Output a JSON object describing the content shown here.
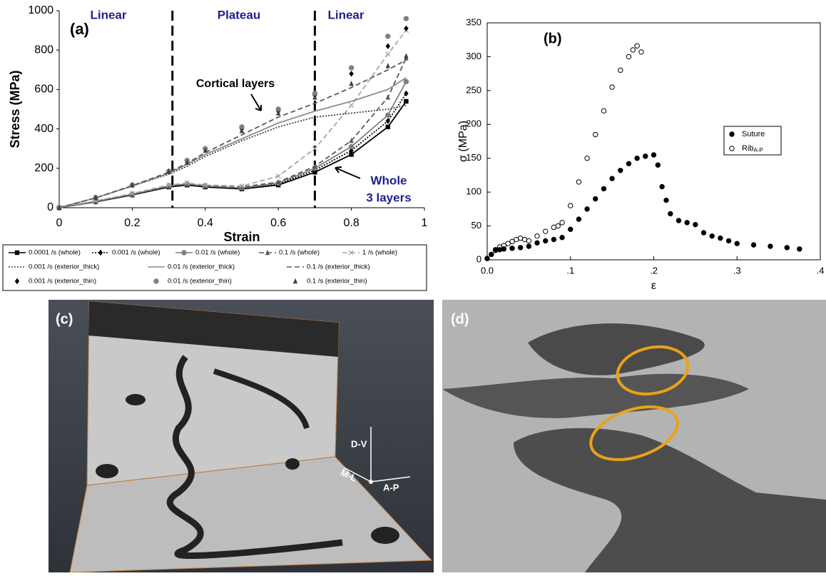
{
  "chart_data": [
    {
      "type": "line",
      "panel_label": "(a)",
      "x_label": "Strain",
      "y_label": "Stress (MPa)",
      "xlim": [
        0,
        1
      ],
      "xticks": [
        0,
        0.2,
        0.4,
        0.6,
        0.8,
        1
      ],
      "ylim": [
        0,
        1000
      ],
      "yticks": [
        0,
        200,
        400,
        600,
        800,
        1000
      ],
      "vlines": [
        0.31,
        0.7
      ],
      "annotations": [
        "Linear",
        "Plateau",
        "Linear",
        "Cortical layers",
        "Whole",
        "3 layers"
      ],
      "x": [
        0,
        0.1,
        0.2,
        0.3,
        0.35,
        0.4,
        0.5,
        0.6,
        0.7,
        0.8,
        0.9,
        0.95
      ],
      "series": [
        {
          "name": "0.0001 /s (whole)",
          "color": "#000000",
          "marker": "square",
          "dash": "solid",
          "values": [
            0,
            30,
            65,
            105,
            115,
            105,
            95,
            115,
            180,
            270,
            410,
            540
          ]
        },
        {
          "name": "0.001 /s (whole)",
          "color": "#000000",
          "marker": "diamond",
          "dash": "dot",
          "values": [
            0,
            30,
            65,
            108,
            118,
            108,
            98,
            120,
            190,
            290,
            440,
            580
          ]
        },
        {
          "name": "0.01 /s (whole)",
          "color": "#7f7f7f",
          "marker": "circle",
          "dash": "solid",
          "values": [
            0,
            32,
            68,
            110,
            120,
            110,
            100,
            125,
            200,
            310,
            470,
            640
          ]
        },
        {
          "name": "0.1 /s (whole)",
          "color": "#595959",
          "marker": "triangle",
          "dash": "dash",
          "values": [
            0,
            32,
            70,
            112,
            122,
            112,
            105,
            130,
            210,
            340,
            560,
            760
          ]
        },
        {
          "name": "1 /s (whole)",
          "color": "#a6a6a6",
          "marker": "x",
          "dash": "dash",
          "values": [
            0,
            35,
            72,
            115,
            125,
            115,
            110,
            160,
            300,
            520,
            780,
            900
          ]
        },
        {
          "name": "0.001 /s (exterior_thick)",
          "color": "#404040",
          "marker": null,
          "dash": "dot",
          "values": [
            0,
            50,
            110,
            170,
            210,
            260,
            340,
            410,
            460,
            480,
            500,
            520
          ]
        },
        {
          "name": "0.01 /s (exterior_thick)",
          "color": "#8c8c8c",
          "marker": null,
          "dash": "solid",
          "values": [
            0,
            50,
            110,
            175,
            220,
            270,
            350,
            430,
            490,
            540,
            600,
            660
          ]
        },
        {
          "name": "0.1 /s (exterior_thick)",
          "color": "#595959",
          "marker": null,
          "dash": "dash",
          "values": [
            0,
            50,
            112,
            180,
            225,
            280,
            370,
            460,
            530,
            610,
            700,
            750
          ]
        },
        {
          "name": "0.001 /s (exterior_thin)",
          "color": "#000000",
          "marker": "diamond",
          "dash": null,
          "values": [
            0,
            52,
            115,
            185,
            235,
            295,
            400,
            490,
            570,
            680,
            820,
            910
          ]
        },
        {
          "name": "0.01 /s (exterior_thin)",
          "color": "#7f7f7f",
          "marker": "circle",
          "dash": null,
          "values": [
            0,
            52,
            115,
            185,
            240,
            300,
            410,
            500,
            580,
            710,
            870,
            960
          ]
        },
        {
          "name": "0.1 /s (exterior_thin)",
          "color": "#404040",
          "marker": "triangle",
          "dash": null,
          "values": [
            0,
            52,
            115,
            183,
            230,
            290,
            390,
            480,
            560,
            630,
            720,
            770
          ]
        }
      ]
    },
    {
      "type": "scatter",
      "panel_label": "(b)",
      "x_label": "ε",
      "y_label": "σ (MPa)",
      "xlim": [
        0,
        0.4
      ],
      "xticks": [
        {
          "value": 0,
          "label": "0.0"
        },
        {
          "value": 0.1,
          "label": ".1"
        },
        {
          "value": 0.2,
          "label": ".2"
        },
        {
          "value": 0.3,
          "label": ".3"
        },
        {
          "value": 0.4,
          "label": ".4"
        }
      ],
      "ylim": [
        0,
        350
      ],
      "yticks": [
        0,
        50,
        100,
        150,
        200,
        250,
        300,
        350
      ],
      "series": [
        {
          "name": "Suture",
          "filled": true,
          "color": "#000000",
          "x": [
            0,
            0.005,
            0.01,
            0.015,
            0.02,
            0.03,
            0.04,
            0.05,
            0.06,
            0.07,
            0.08,
            0.09,
            0.1,
            0.11,
            0.12,
            0.13,
            0.14,
            0.15,
            0.16,
            0.17,
            0.18,
            0.19,
            0.2,
            0.205,
            0.21,
            0.215,
            0.22,
            0.23,
            0.24,
            0.25,
            0.26,
            0.27,
            0.28,
            0.29,
            0.3,
            0.32,
            0.34,
            0.36,
            0.375
          ],
          "values": [
            2,
            8,
            14,
            15,
            16,
            17,
            18,
            20,
            25,
            28,
            30,
            33,
            45,
            60,
            75,
            90,
            105,
            120,
            132,
            142,
            150,
            153,
            155,
            140,
            108,
            88,
            68,
            58,
            55,
            52,
            40,
            35,
            32,
            28,
            24,
            22,
            20,
            18,
            16
          ]
        },
        {
          "name": "Rib",
          "subscript": "A-P",
          "filled": false,
          "color": "#000000",
          "x": [
            0,
            0.005,
            0.01,
            0.015,
            0.02,
            0.025,
            0.03,
            0.035,
            0.04,
            0.045,
            0.05,
            0.06,
            0.07,
            0.08,
            0.085,
            0.09,
            0.1,
            0.11,
            0.12,
            0.13,
            0.14,
            0.15,
            0.16,
            0.17,
            0.175,
            0.18,
            0.185
          ],
          "values": [
            2,
            8,
            15,
            19,
            21,
            24,
            27,
            30,
            32,
            30,
            28,
            35,
            42,
            48,
            50,
            55,
            80,
            115,
            150,
            185,
            220,
            255,
            280,
            300,
            310,
            316,
            307
          ]
        }
      ]
    }
  ],
  "images": [
    {
      "panel_label": "(c)",
      "axes": [
        "D-V",
        "M-L",
        "A-P"
      ]
    },
    {
      "panel_label": "(d)"
    }
  ]
}
